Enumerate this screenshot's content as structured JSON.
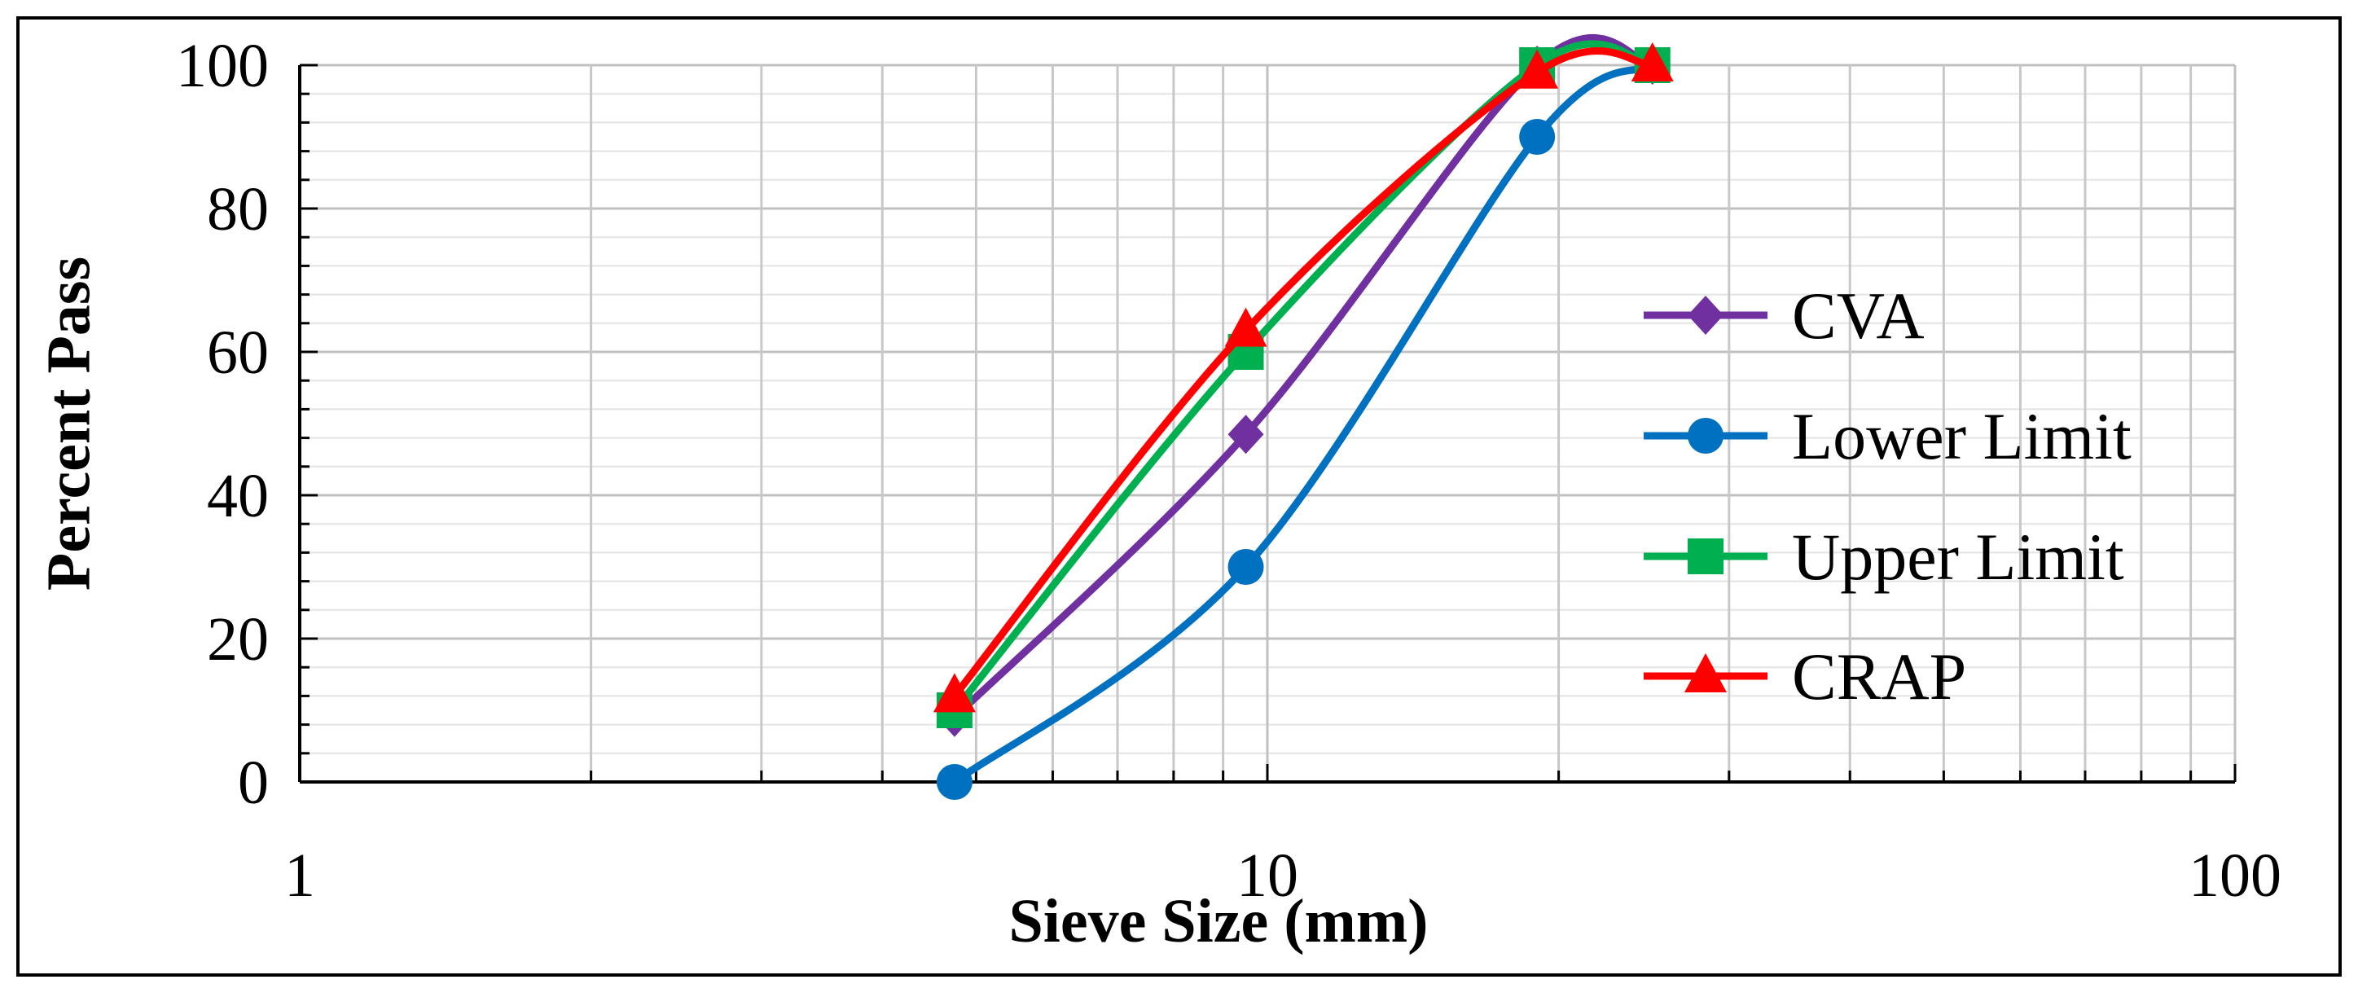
{
  "chart_data": {
    "type": "line",
    "x_scale": "log",
    "title": "",
    "xlabel": "Sieve Size (mm)",
    "ylabel": "Percent Pass",
    "xlim": [
      1,
      100
    ],
    "ylim": [
      0,
      100
    ],
    "x_ticks": [
      {
        "value": 1,
        "label": "1"
      },
      {
        "value": 10,
        "label": "10"
      },
      {
        "value": 100,
        "label": "100"
      }
    ],
    "y_ticks": [
      {
        "value": 0,
        "label": "0"
      },
      {
        "value": 20,
        "label": "20"
      },
      {
        "value": 40,
        "label": "40"
      },
      {
        "value": 60,
        "label": "60"
      },
      {
        "value": 80,
        "label": "80"
      },
      {
        "value": 100,
        "label": "100"
      }
    ],
    "grid": true,
    "legend_position": "right",
    "series": [
      {
        "name": "CVA",
        "color": "#7030a0",
        "marker": "diamond",
        "x": [
          4.75,
          9.5,
          19,
          25
        ],
        "y": [
          9,
          48.5,
          100,
          100
        ]
      },
      {
        "name": "Lower Limit",
        "color": "#0070c0",
        "marker": "circle",
        "x": [
          4.75,
          9.5,
          19,
          25
        ],
        "y": [
          0,
          30,
          90,
          100
        ]
      },
      {
        "name": "Upper Limit",
        "color": "#00b050",
        "marker": "square",
        "x": [
          4.75,
          9.5,
          19,
          25
        ],
        "y": [
          10,
          60,
          100,
          100
        ]
      },
      {
        "name": "CRAP",
        "color": "#ff0000",
        "marker": "triangle",
        "x": [
          4.75,
          9.5,
          19,
          25
        ],
        "y": [
          12,
          63,
          99,
          100
        ]
      }
    ]
  }
}
